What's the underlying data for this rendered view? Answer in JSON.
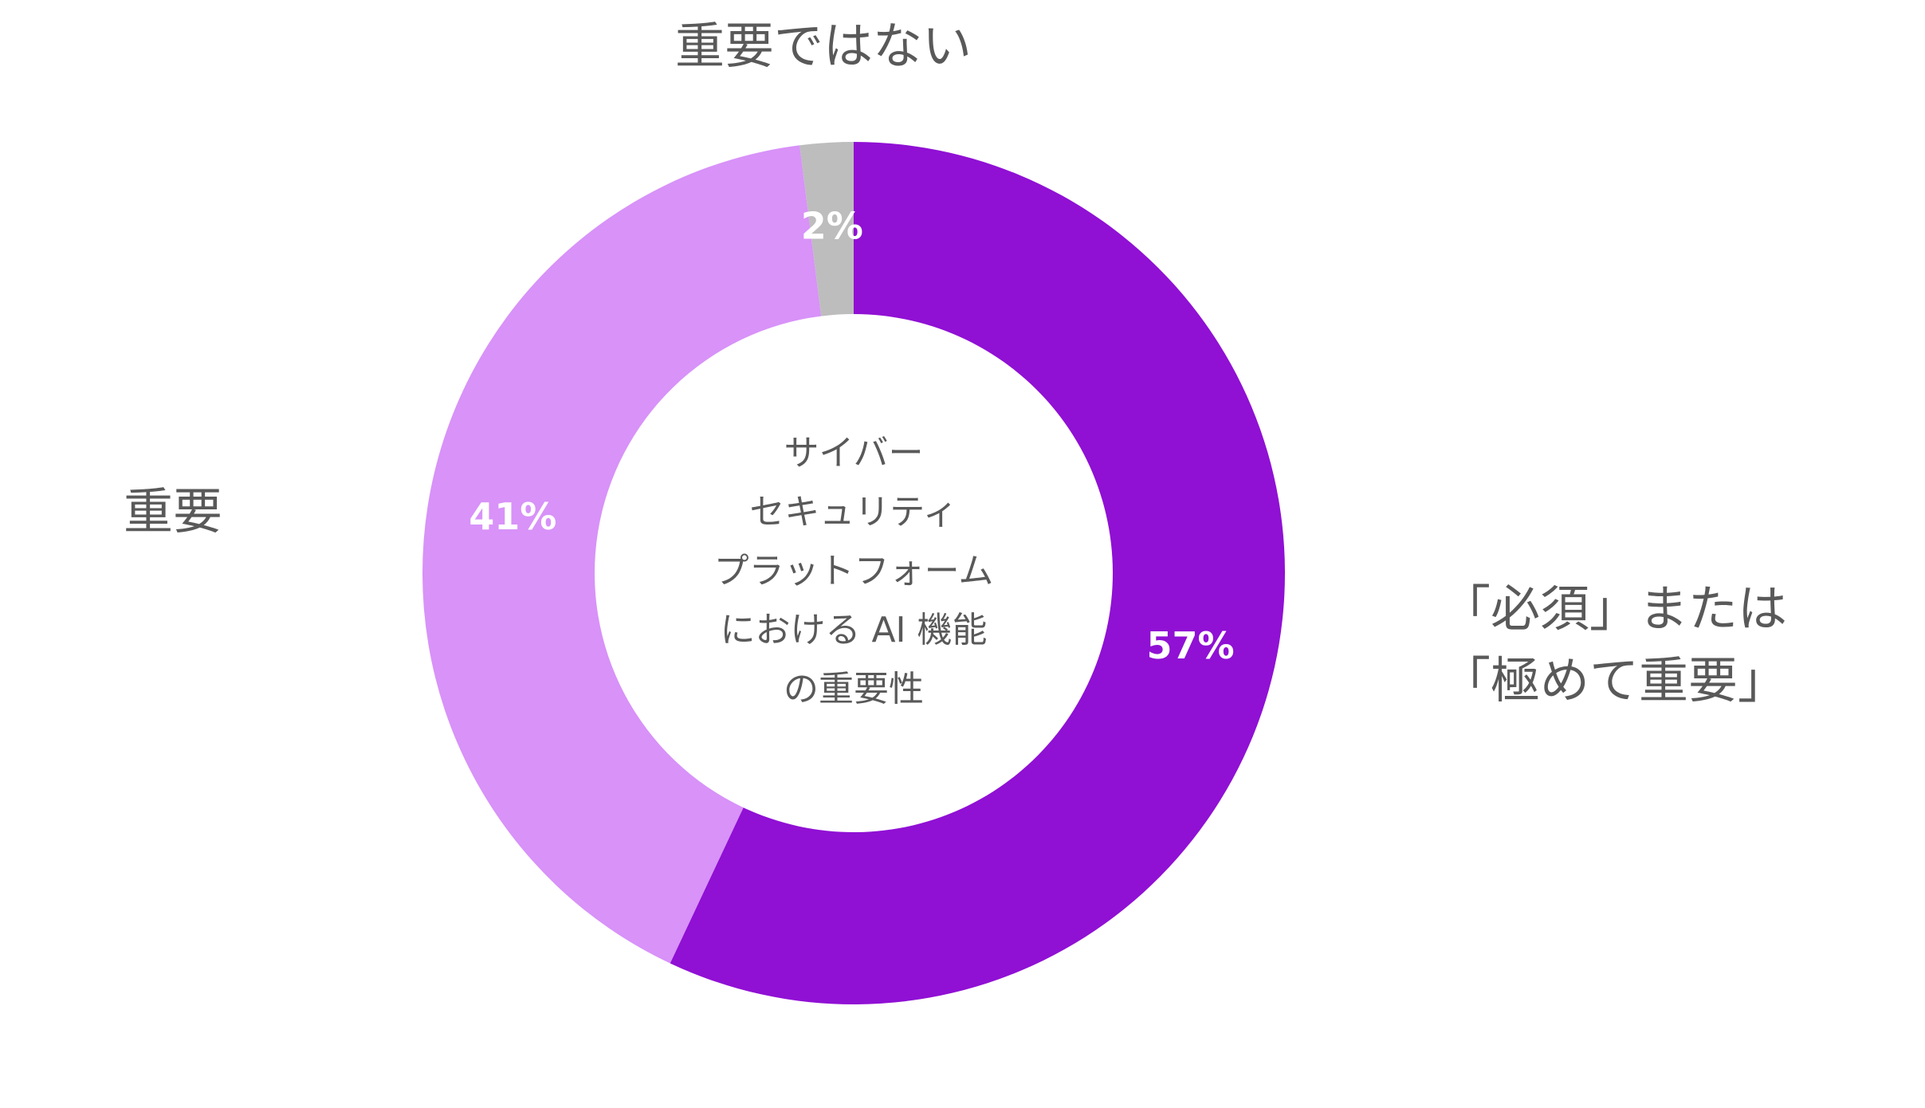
{
  "chart_data": {
    "type": "donut",
    "title": [
      "サイバー",
      "セキュリティ",
      "プラットフォーム",
      "における AI 機能",
      "の重要性"
    ],
    "categories": [
      "「必須」または\n「極めて重要」",
      "重要",
      "重要ではない"
    ],
    "values": [
      57,
      41,
      2
    ],
    "value_labels": [
      "57%",
      "41%",
      "2%"
    ],
    "colors": [
      "#9010d4",
      "#d892f8",
      "#bdbdbd"
    ]
  }
}
